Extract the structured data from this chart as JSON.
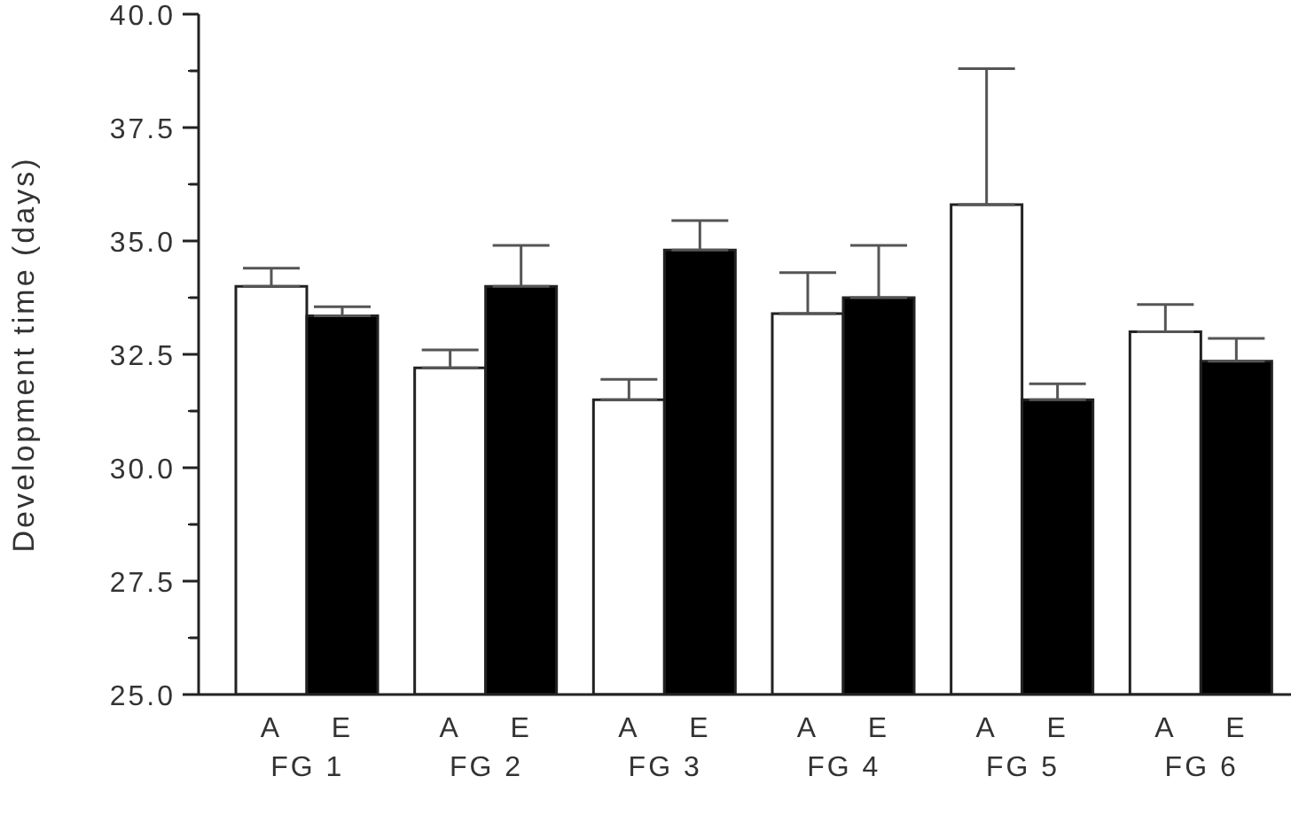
{
  "chart_data": {
    "type": "bar",
    "ylabel": "Development time (days)",
    "categories": [
      "FG 1",
      "FG 2",
      "FG 3",
      "FG 4",
      "FG 5",
      "FG 6"
    ],
    "series": [
      {
        "name": "A",
        "color": "#ffffff",
        "values": [
          34.0,
          32.2,
          31.5,
          33.4,
          35.8,
          33.0
        ],
        "errors": [
          [
            34.0,
            34.4
          ],
          [
            32.2,
            32.6
          ],
          [
            31.5,
            31.95
          ],
          [
            33.4,
            34.3
          ],
          [
            35.8,
            38.8
          ],
          [
            33.0,
            33.6
          ]
        ]
      },
      {
        "name": "E",
        "color": "#000000",
        "values": [
          33.35,
          34.0,
          34.8,
          33.75,
          31.5,
          32.35
        ],
        "errors": [
          [
            33.35,
            33.55
          ],
          [
            34.0,
            34.9
          ],
          [
            34.8,
            35.45
          ],
          [
            33.75,
            34.9
          ],
          [
            31.5,
            31.85
          ],
          [
            32.35,
            32.85
          ]
        ]
      }
    ],
    "ylim": [
      25,
      40
    ],
    "yticks": [
      {
        "value": 25,
        "label": "25.0"
      },
      {
        "value": 26.25,
        "label": null
      },
      27.5,
      {
        "value": 28.75,
        "label": null
      },
      {
        "value": 30,
        "label": "30.0"
      },
      {
        "value": 31.25,
        "label": null
      },
      32.5,
      {
        "value": 33.75,
        "label": null
      },
      {
        "value": 35,
        "label": "35.0"
      },
      {
        "value": 36.25,
        "label": null
      },
      37.5,
      {
        "value": 38.75,
        "label": null
      },
      {
        "value": 40,
        "label": "40.0"
      }
    ]
  }
}
